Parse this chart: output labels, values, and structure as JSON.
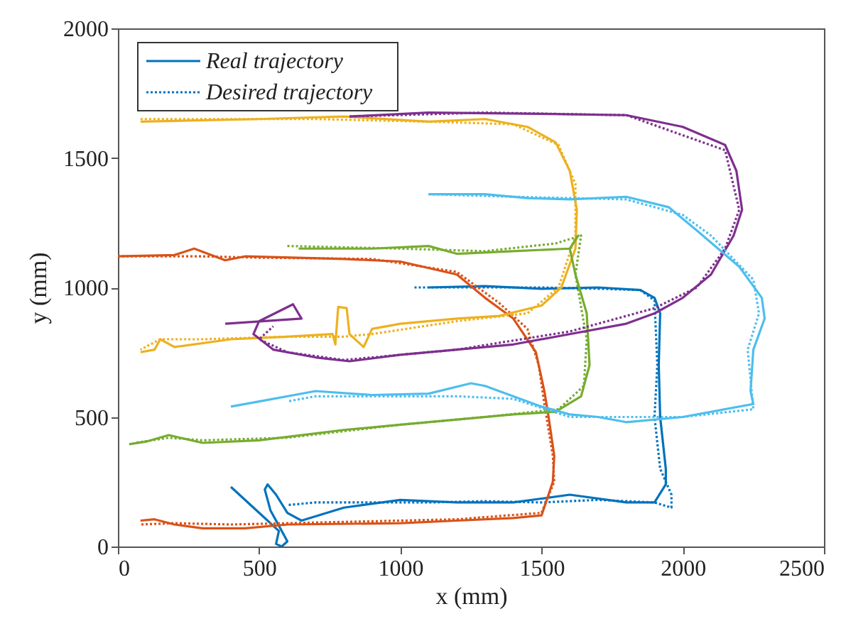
{
  "chart_data": {
    "type": "line",
    "xlabel": "x (mm)",
    "ylabel": "y (mm)",
    "xlim": [
      0,
      2500
    ],
    "ylim": [
      0,
      2000
    ],
    "xticks": [
      0,
      500,
      1000,
      1500,
      2000,
      2500
    ],
    "yticks": [
      0,
      500,
      1000,
      1500,
      2000
    ],
    "grid": false,
    "legend": "top left",
    "series": [
      {
        "name": "Real trajectory",
        "color": "#0072bd",
        "line_style": "solid",
        "x": [
          1100,
          1300,
          1500,
          1700,
          1850,
          1900,
          1920,
          1915,
          1920,
          1940,
          1940,
          1900,
          1800,
          1600,
          1400,
          1200,
          1000,
          800,
          650,
          600,
          560,
          530,
          520,
          540,
          580,
          600,
          580,
          560,
          570,
          500,
          400
        ],
        "values": [
          1000,
          1005,
          995,
          1000,
          990,
          960,
          900,
          700,
          500,
          300,
          240,
          170,
          170,
          200,
          170,
          170,
          180,
          150,
          100,
          130,
          200,
          240,
          220,
          140,
          60,
          20,
          0,
          10,
          60,
          130,
          230
        ]
      },
      {
        "name": "Desired trajectory",
        "color": "#0072bd",
        "line_style": "dotted",
        "x": [
          1050,
          1300,
          1500,
          1700,
          1850,
          1900,
          1910,
          1900,
          1920,
          1960,
          1960,
          1900,
          1700,
          1500,
          1300,
          1100,
          900,
          700,
          600
        ],
        "values": [
          1000,
          1000,
          1000,
          995,
          990,
          950,
          700,
          500,
          300,
          200,
          150,
          170,
          180,
          170,
          175,
          170,
          170,
          170,
          160
        ]
      },
      {
        "color": "#d95319",
        "line_style": "solid",
        "x": [
          0,
          200,
          270,
          380,
          450,
          800,
          1000,
          1200,
          1300,
          1400,
          1480,
          1510,
          1525,
          1545,
          1540,
          1500,
          1400,
          1200,
          1000,
          600,
          450,
          300,
          200,
          130,
          80
        ],
        "values": [
          1120,
          1125,
          1150,
          1105,
          1120,
          1110,
          1100,
          1050,
          960,
          880,
          750,
          600,
          500,
          350,
          250,
          120,
          110,
          100,
          90,
          85,
          70,
          70,
          85,
          105,
          100
        ]
      },
      {
        "color": "#d95319",
        "line_style": "dotted",
        "x": [
          0,
          300,
          500,
          900,
          1200,
          1350,
          1450,
          1490,
          1510,
          1540,
          1545,
          1500,
          1200,
          800,
          400,
          200,
          80
        ],
        "values": [
          1120,
          1120,
          1115,
          1110,
          1060,
          940,
          840,
          700,
          550,
          350,
          250,
          130,
          105,
          95,
          85,
          90,
          85
        ]
      },
      {
        "color": "#edb120",
        "line_style": "solid",
        "x": [
          80,
          500,
          800,
          1100,
          1300,
          1450,
          1550,
          1600,
          1625,
          1620,
          1570,
          1500,
          1350,
          1200,
          1000,
          900,
          870,
          820,
          810,
          780,
          770,
          760,
          600,
          400,
          200,
          150,
          130,
          80
        ],
        "values": [
          1640,
          1650,
          1660,
          1640,
          1650,
          1620,
          1560,
          1450,
          1300,
          1150,
          1000,
          930,
          890,
          880,
          860,
          840,
          770,
          820,
          920,
          925,
          780,
          820,
          810,
          800,
          770,
          800,
          760,
          750
        ]
      },
      {
        "color": "#edb120",
        "line_style": "dotted",
        "x": [
          80,
          700,
          1100,
          1400,
          1560,
          1620,
          1620,
          1560,
          1450,
          1200,
          900,
          800,
          600,
          300,
          150,
          80
        ],
        "values": [
          1650,
          1650,
          1640,
          1630,
          1550,
          1400,
          1200,
          1000,
          900,
          870,
          820,
          810,
          810,
          800,
          800,
          760
        ]
      },
      {
        "color": "#77ac30",
        "line_style": "solid",
        "x": [
          640,
          900,
          1100,
          1200,
          1400,
          1600,
          1630,
          1600,
          1620,
          1660,
          1670,
          1640,
          1550,
          1400,
          1200,
          1000,
          800,
          500,
          300,
          220,
          180,
          100,
          40
        ],
        "values": [
          1150,
          1150,
          1160,
          1130,
          1140,
          1150,
          1200,
          1150,
          1050,
          900,
          700,
          580,
          520,
          510,
          490,
          470,
          450,
          410,
          400,
          420,
          430,
          405,
          395
        ]
      },
      {
        "color": "#77ac30",
        "line_style": "dotted",
        "x": [
          600,
          1000,
          1300,
          1550,
          1640,
          1620,
          1660,
          1650,
          1560,
          1300,
          1000,
          600,
          300,
          180,
          60
        ],
        "values": [
          1160,
          1150,
          1140,
          1170,
          1200,
          1050,
          800,
          620,
          530,
          500,
          470,
          420,
          410,
          420,
          400
        ]
      },
      {
        "color": "#7e2f8e",
        "line_style": "solid",
        "x": [
          820,
          1100,
          1500,
          1800,
          2000,
          2150,
          2190,
          2210,
          2180,
          2100,
          2000,
          1900,
          1800,
          1600,
          1400,
          1200,
          1000,
          820,
          700,
          550,
          480,
          500,
          620,
          650,
          380
        ],
        "values": [
          1660,
          1675,
          1670,
          1665,
          1620,
          1550,
          1450,
          1300,
          1200,
          1050,
          960,
          900,
          860,
          820,
          780,
          760,
          740,
          715,
          730,
          760,
          820,
          870,
          935,
          880,
          860
        ]
      },
      {
        "color": "#7e2f8e",
        "line_style": "dotted",
        "x": [
          820,
          1300,
          1800,
          2150,
          2200,
          2150,
          2050,
          1900,
          1600,
          1200,
          800,
          600,
          500,
          550
        ],
        "values": [
          1660,
          1675,
          1665,
          1530,
          1300,
          1150,
          1000,
          920,
          830,
          760,
          720,
          750,
          800,
          850
        ]
      },
      {
        "color": "#4dbeee",
        "line_style": "solid",
        "x": [
          1100,
          1300,
          1450,
          1600,
          1800,
          1950,
          2050,
          2200,
          2280,
          2290,
          2250,
          2240,
          2250,
          2000,
          1800,
          1700,
          1600,
          1500,
          1300,
          1250,
          1100,
          900,
          700,
          500,
          400
        ],
        "values": [
          1360,
          1360,
          1345,
          1340,
          1350,
          1310,
          1220,
          1080,
          960,
          880,
          760,
          600,
          550,
          500,
          480,
          500,
          510,
          540,
          620,
          630,
          590,
          585,
          600,
          560,
          540
        ]
      },
      {
        "color": "#4dbeee",
        "line_style": "dotted",
        "x": [
          1100,
          1400,
          1800,
          2000,
          2100,
          2250,
          2270,
          2230,
          2250,
          2000,
          1600,
          1400,
          1200,
          1000,
          700,
          600
        ],
        "values": [
          1360,
          1350,
          1340,
          1280,
          1200,
          1030,
          900,
          760,
          530,
          500,
          500,
          570,
          580,
          580,
          580,
          560
        ]
      }
    ]
  }
}
